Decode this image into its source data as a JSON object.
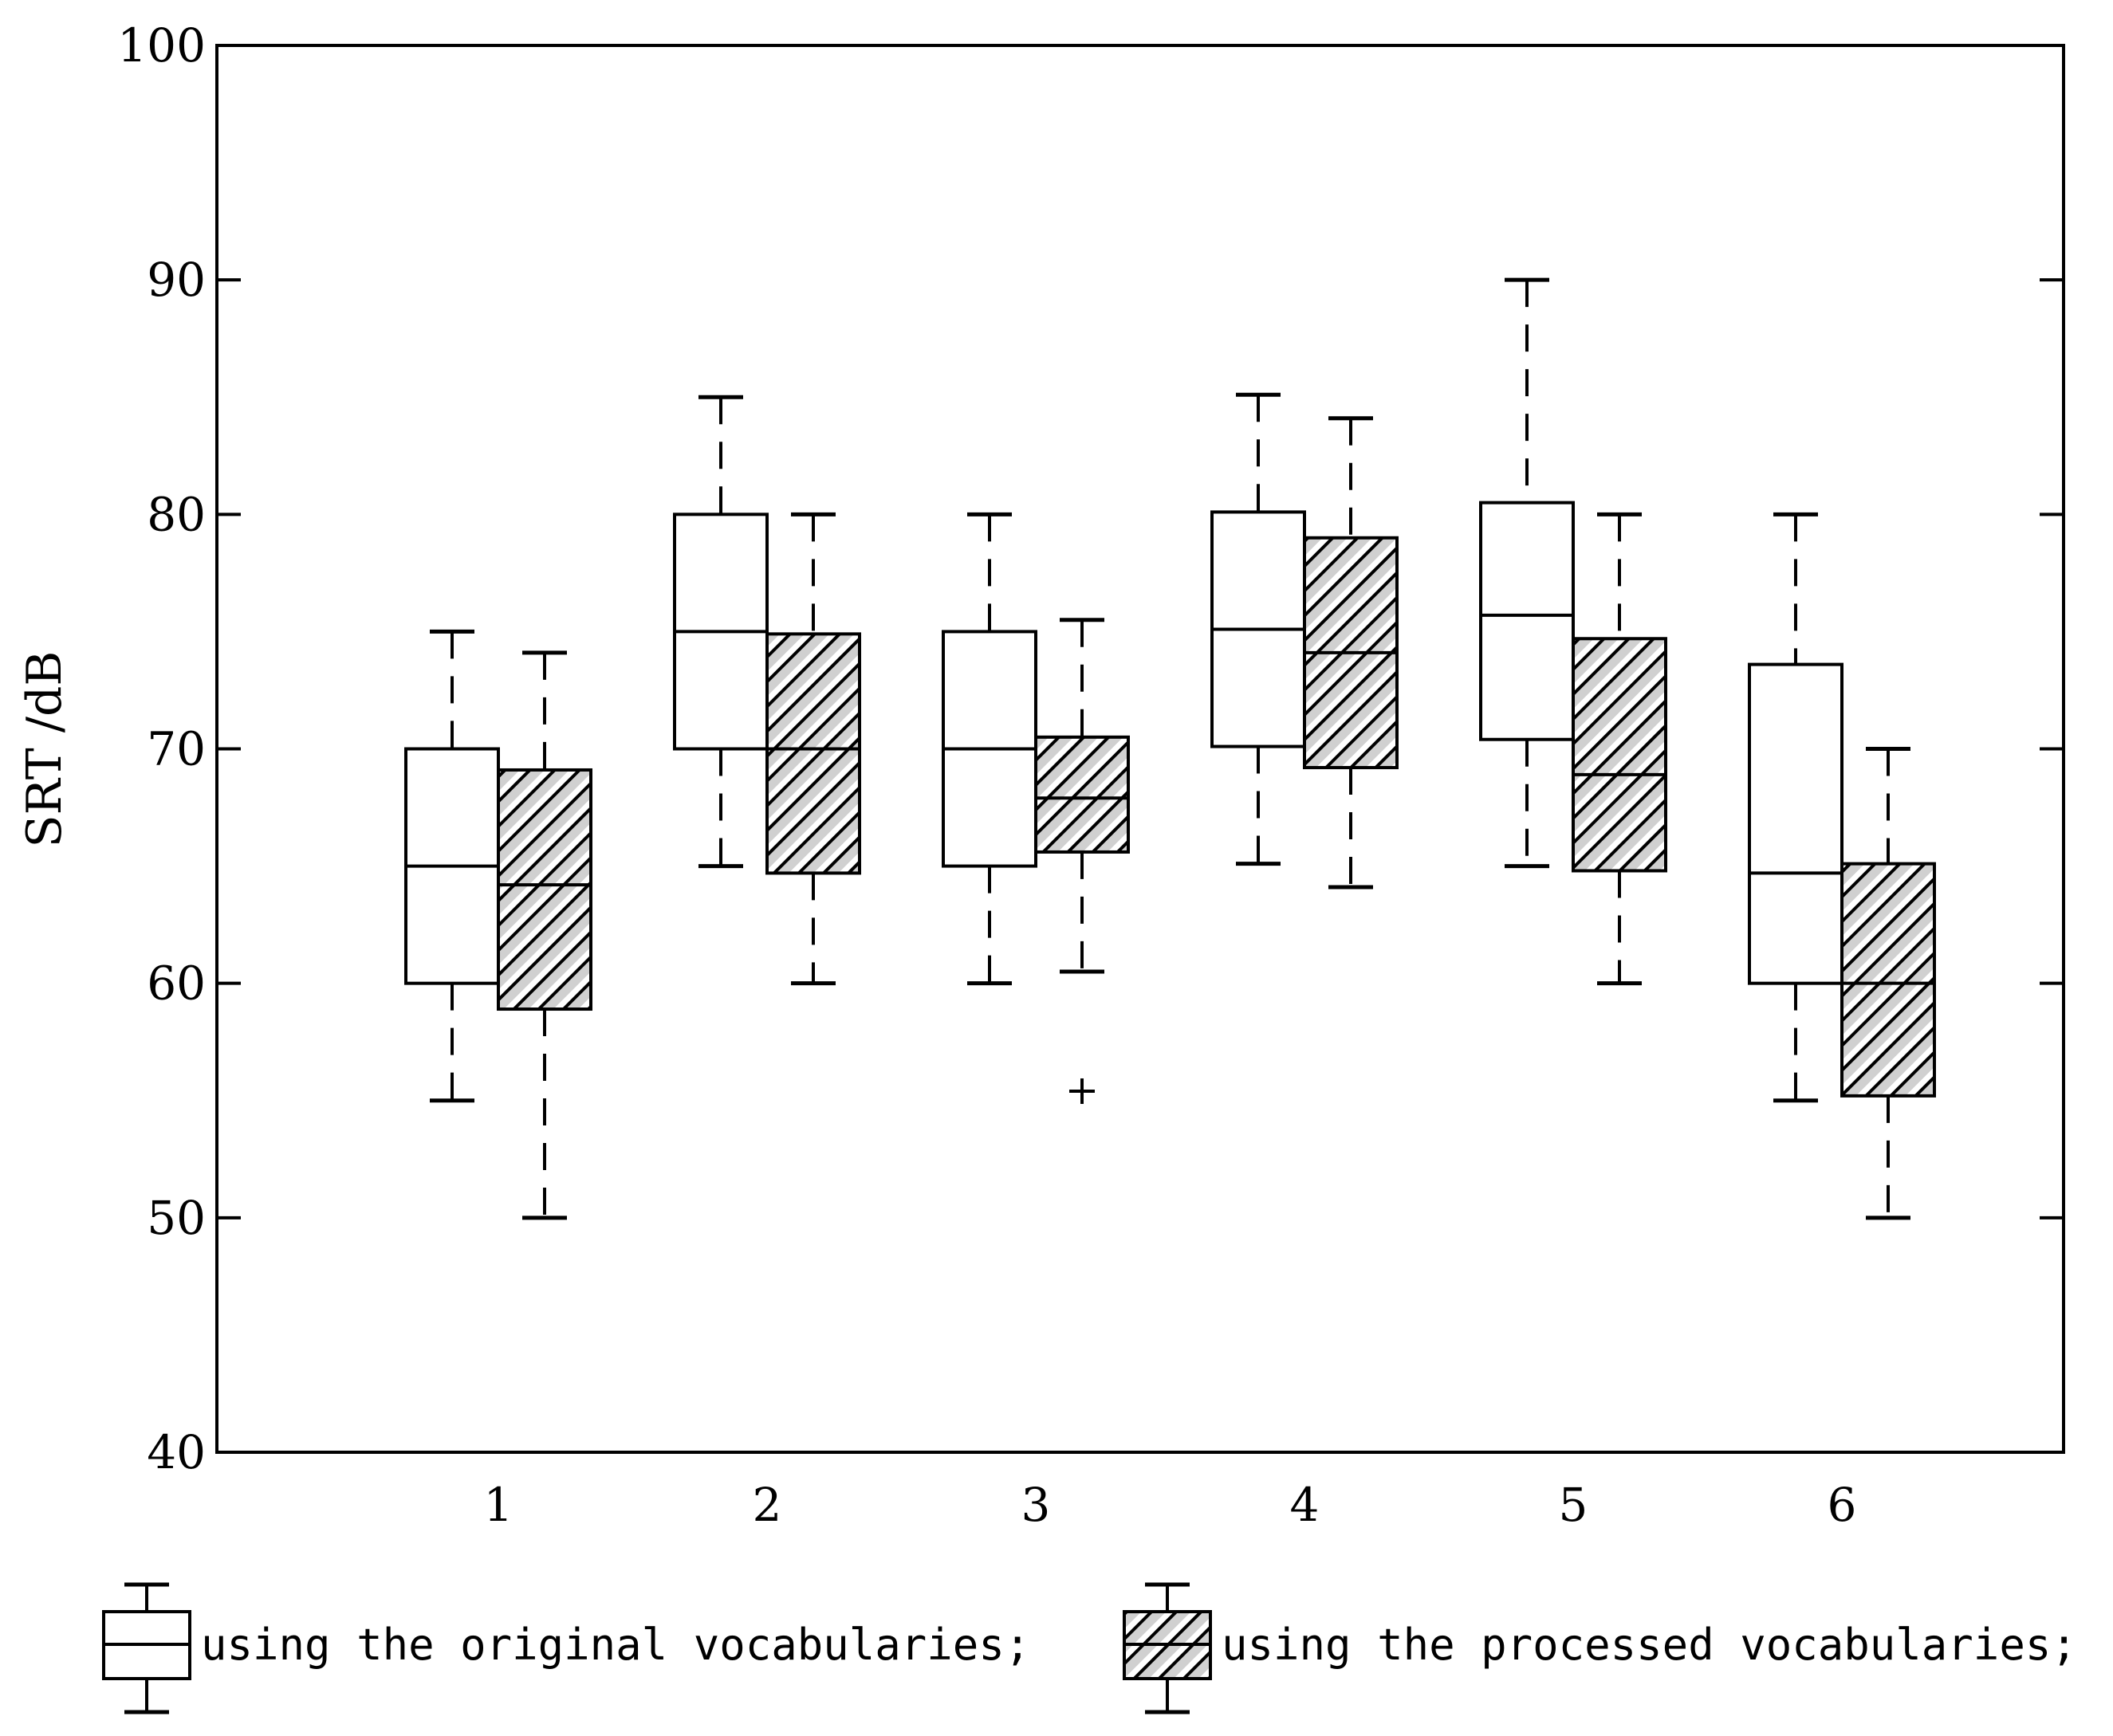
{
  "chart_data": {
    "type": "boxplot",
    "title": "",
    "xlabel": "",
    "ylabel": "SRT /dB",
    "ylim": [
      40,
      100
    ],
    "yticks": [
      40,
      50,
      60,
      70,
      80,
      90,
      100
    ],
    "categories": [
      "1",
      "2",
      "3",
      "4",
      "5",
      "6"
    ],
    "series": [
      {
        "name": "using the original vocabularies;",
        "fill": "none",
        "boxes": [
          {
            "whisker_low": 55,
            "q1": 60,
            "median": 65,
            "q3": 70,
            "whisker_high": 75,
            "outliers": []
          },
          {
            "whisker_low": 65,
            "q1": 70,
            "median": 75,
            "q3": 80,
            "whisker_high": 85,
            "outliers": []
          },
          {
            "whisker_low": 60,
            "q1": 65,
            "median": 70,
            "q3": 75,
            "whisker_high": 80,
            "outliers": []
          },
          {
            "whisker_low": 65.1,
            "q1": 70.1,
            "median": 75.1,
            "q3": 80.1,
            "whisker_high": 85.1,
            "outliers": []
          },
          {
            "whisker_low": 65,
            "q1": 70.4,
            "median": 75.7,
            "q3": 80.5,
            "whisker_high": 90,
            "outliers": []
          },
          {
            "whisker_low": 55,
            "q1": 60,
            "median": 64.7,
            "q3": 73.6,
            "whisker_high": 80,
            "outliers": []
          }
        ]
      },
      {
        "name": "using the processed vocabularies;",
        "fill": "hatched",
        "boxes": [
          {
            "whisker_low": 50,
            "q1": 58.9,
            "median": 64.2,
            "q3": 69.1,
            "whisker_high": 74.1,
            "outliers": []
          },
          {
            "whisker_low": 60,
            "q1": 64.7,
            "median": 70,
            "q3": 74.9,
            "whisker_high": 80,
            "outliers": []
          },
          {
            "whisker_low": 60.5,
            "q1": 65.6,
            "median": 67.9,
            "q3": 70.5,
            "whisker_high": 75.5,
            "outliers": [
              55.4
            ]
          },
          {
            "whisker_low": 64.1,
            "q1": 69.2,
            "median": 74.1,
            "q3": 79,
            "whisker_high": 84.1,
            "outliers": []
          },
          {
            "whisker_low": 60,
            "q1": 64.8,
            "median": 68.9,
            "q3": 74.7,
            "whisker_high": 80,
            "outliers": []
          },
          {
            "whisker_low": 50,
            "q1": 55.2,
            "median": 60,
            "q3": 65.1,
            "whisker_high": 70,
            "outliers": []
          }
        ]
      }
    ],
    "legend": {
      "placement": "bottom"
    }
  },
  "colors": {
    "stroke": "#000000",
    "background": "#ffffff",
    "hatch": "#000000",
    "hatch_bg": "#d9d9d9"
  }
}
